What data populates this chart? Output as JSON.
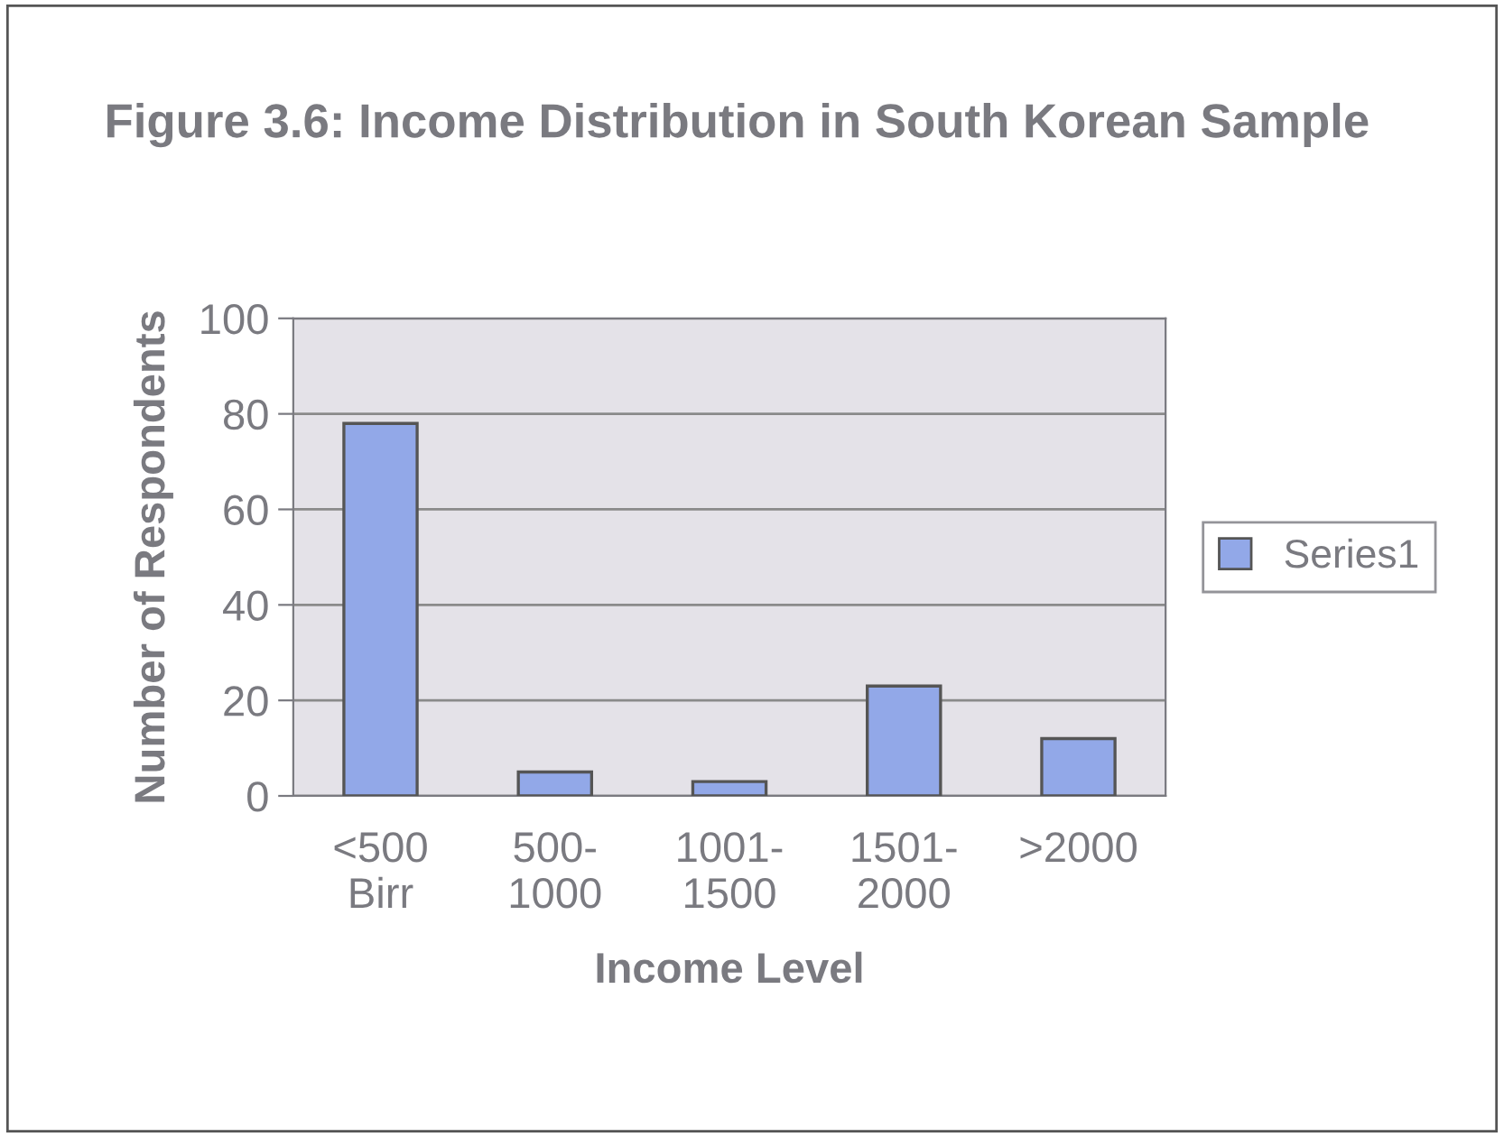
{
  "chart_data": {
    "type": "bar",
    "title": "Figure 3.6: Income Distribution in South Korean Sample",
    "xlabel": "Income Level",
    "ylabel": "Number of Respondents",
    "categories": [
      "<500\nBirr",
      "500-\n1000",
      "1001-\n1500",
      "1501-\n2000",
      ">2000"
    ],
    "series": [
      {
        "name": "Series1",
        "color": "#92a8e8",
        "values": [
          78,
          5,
          3,
          23,
          12
        ]
      }
    ],
    "ylim": [
      0,
      100
    ],
    "yticks": [
      0,
      20,
      40,
      60,
      80,
      100
    ],
    "grid": "y",
    "legend": "right"
  }
}
